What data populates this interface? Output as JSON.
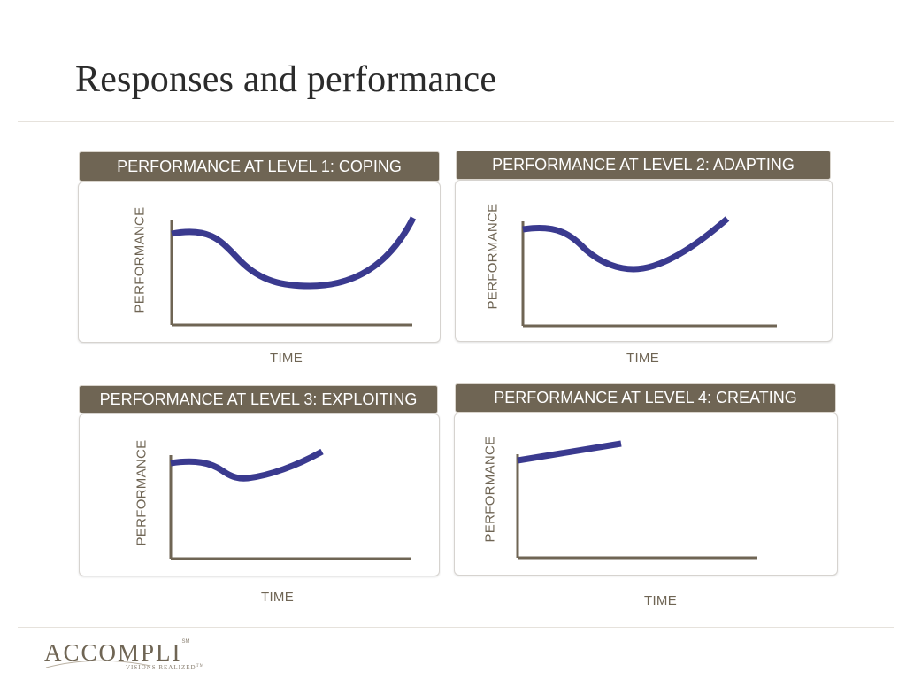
{
  "title": "Responses and performance",
  "panels": [
    {
      "header": "PERFORMANCE AT LEVEL 1: COPING",
      "ylabel": "PERFORMANCE",
      "xlabel": "TIME"
    },
    {
      "header": "PERFORMANCE AT LEVEL 2: ADAPTING",
      "ylabel": "PERFORMANCE",
      "xlabel": "TIME"
    },
    {
      "header": "PERFORMANCE AT LEVEL 3: EXPLOITING",
      "ylabel": "PERFORMANCE",
      "xlabel": "TIME"
    },
    {
      "header": "PERFORMANCE AT LEVEL 4: CREATING",
      "ylabel": "PERFORMANCE",
      "xlabel": "TIME"
    }
  ],
  "logo": {
    "wordmark": "ACCOMPLI",
    "sm": "SM",
    "tagline": "VISIONS REALIZED",
    "tm": "TM"
  },
  "colors": {
    "curve": "#3a3a8f",
    "axis": "#6f6554",
    "header_bg": "#6f6554"
  }
}
